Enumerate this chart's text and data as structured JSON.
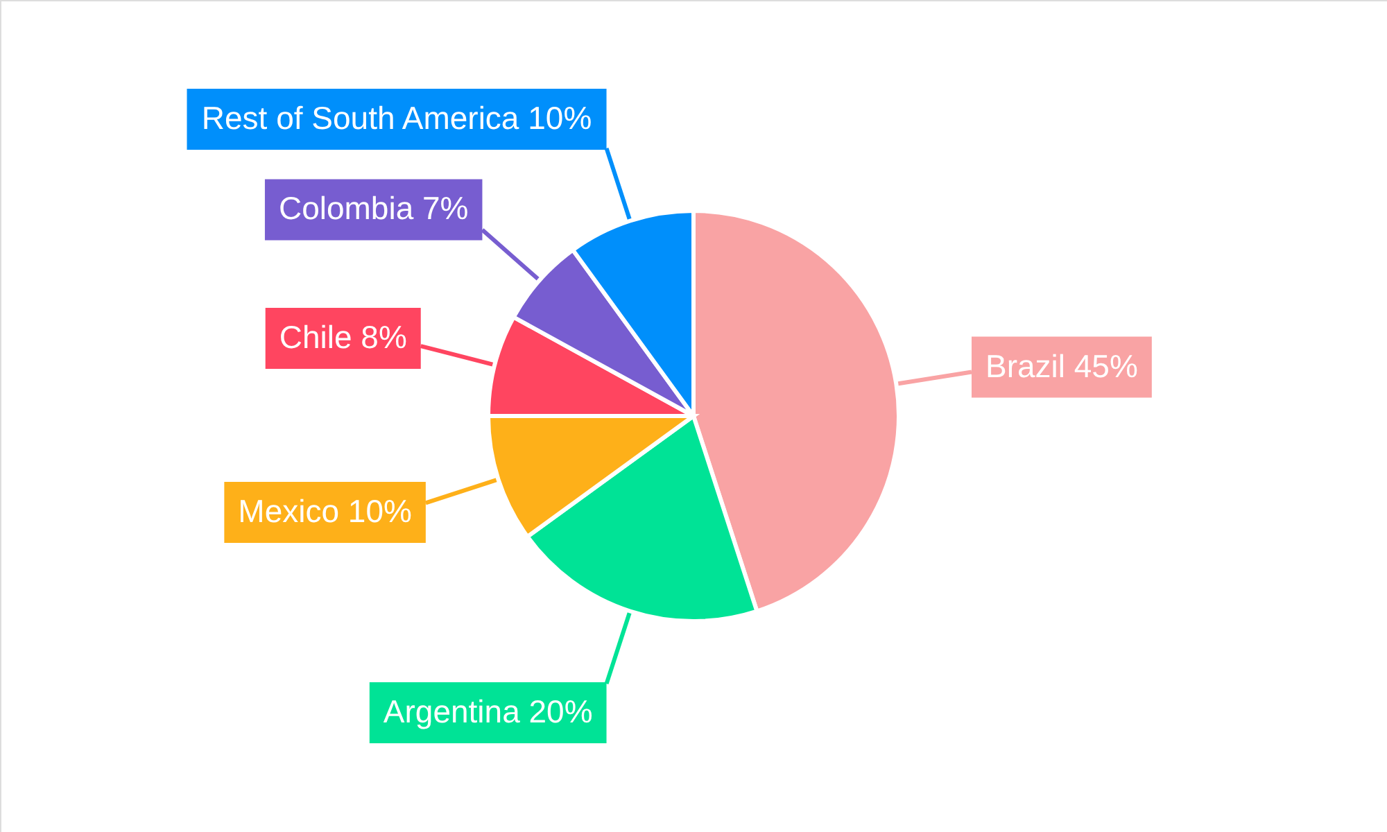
{
  "chart_data": {
    "type": "pie",
    "categories": [
      "Brazil",
      "Argentina",
      "Mexico",
      "Chile",
      "Colombia",
      "Rest of South America"
    ],
    "values": [
      45,
      20,
      10,
      8,
      7,
      10
    ],
    "value_labels": [
      "45%",
      "20%",
      "10%",
      "8%",
      "7%",
      "10%"
    ],
    "colors": [
      "#f9a3a4",
      "#00e396",
      "#feb019",
      "#ff4560",
      "#775dd0",
      "#008ffb"
    ]
  }
}
